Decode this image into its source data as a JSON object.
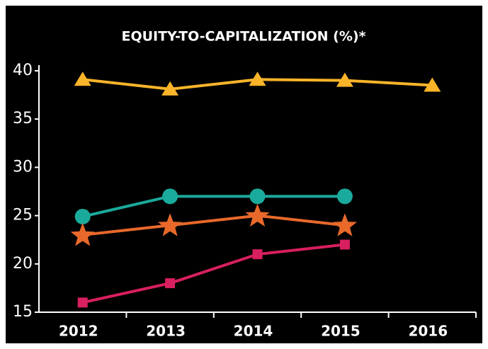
{
  "chart_data": {
    "type": "line",
    "title": "EQUITY-TO-CAPITALIZATION (%)*",
    "categories": [
      "2012",
      "2013",
      "2014",
      "2015",
      "2016"
    ],
    "series": [
      {
        "color": "#f9b429",
        "marker": "triangle",
        "values": [
          39.1,
          38.1,
          39.1,
          39,
          38.5
        ]
      },
      {
        "color": "#1aaa9c",
        "marker": "circle",
        "values": [
          24.9,
          27,
          27,
          27,
          null
        ]
      },
      {
        "color": "#e8692a",
        "marker": "star",
        "values": [
          23,
          24,
          25,
          24,
          null
        ]
      },
      {
        "color": "#d81f5f",
        "marker": "square",
        "values": [
          16,
          18,
          21,
          22,
          null
        ]
      }
    ],
    "ylim": [
      15,
      40
    ],
    "yticks": [
      15,
      20,
      25,
      30,
      35,
      40
    ],
    "grid": false
  }
}
